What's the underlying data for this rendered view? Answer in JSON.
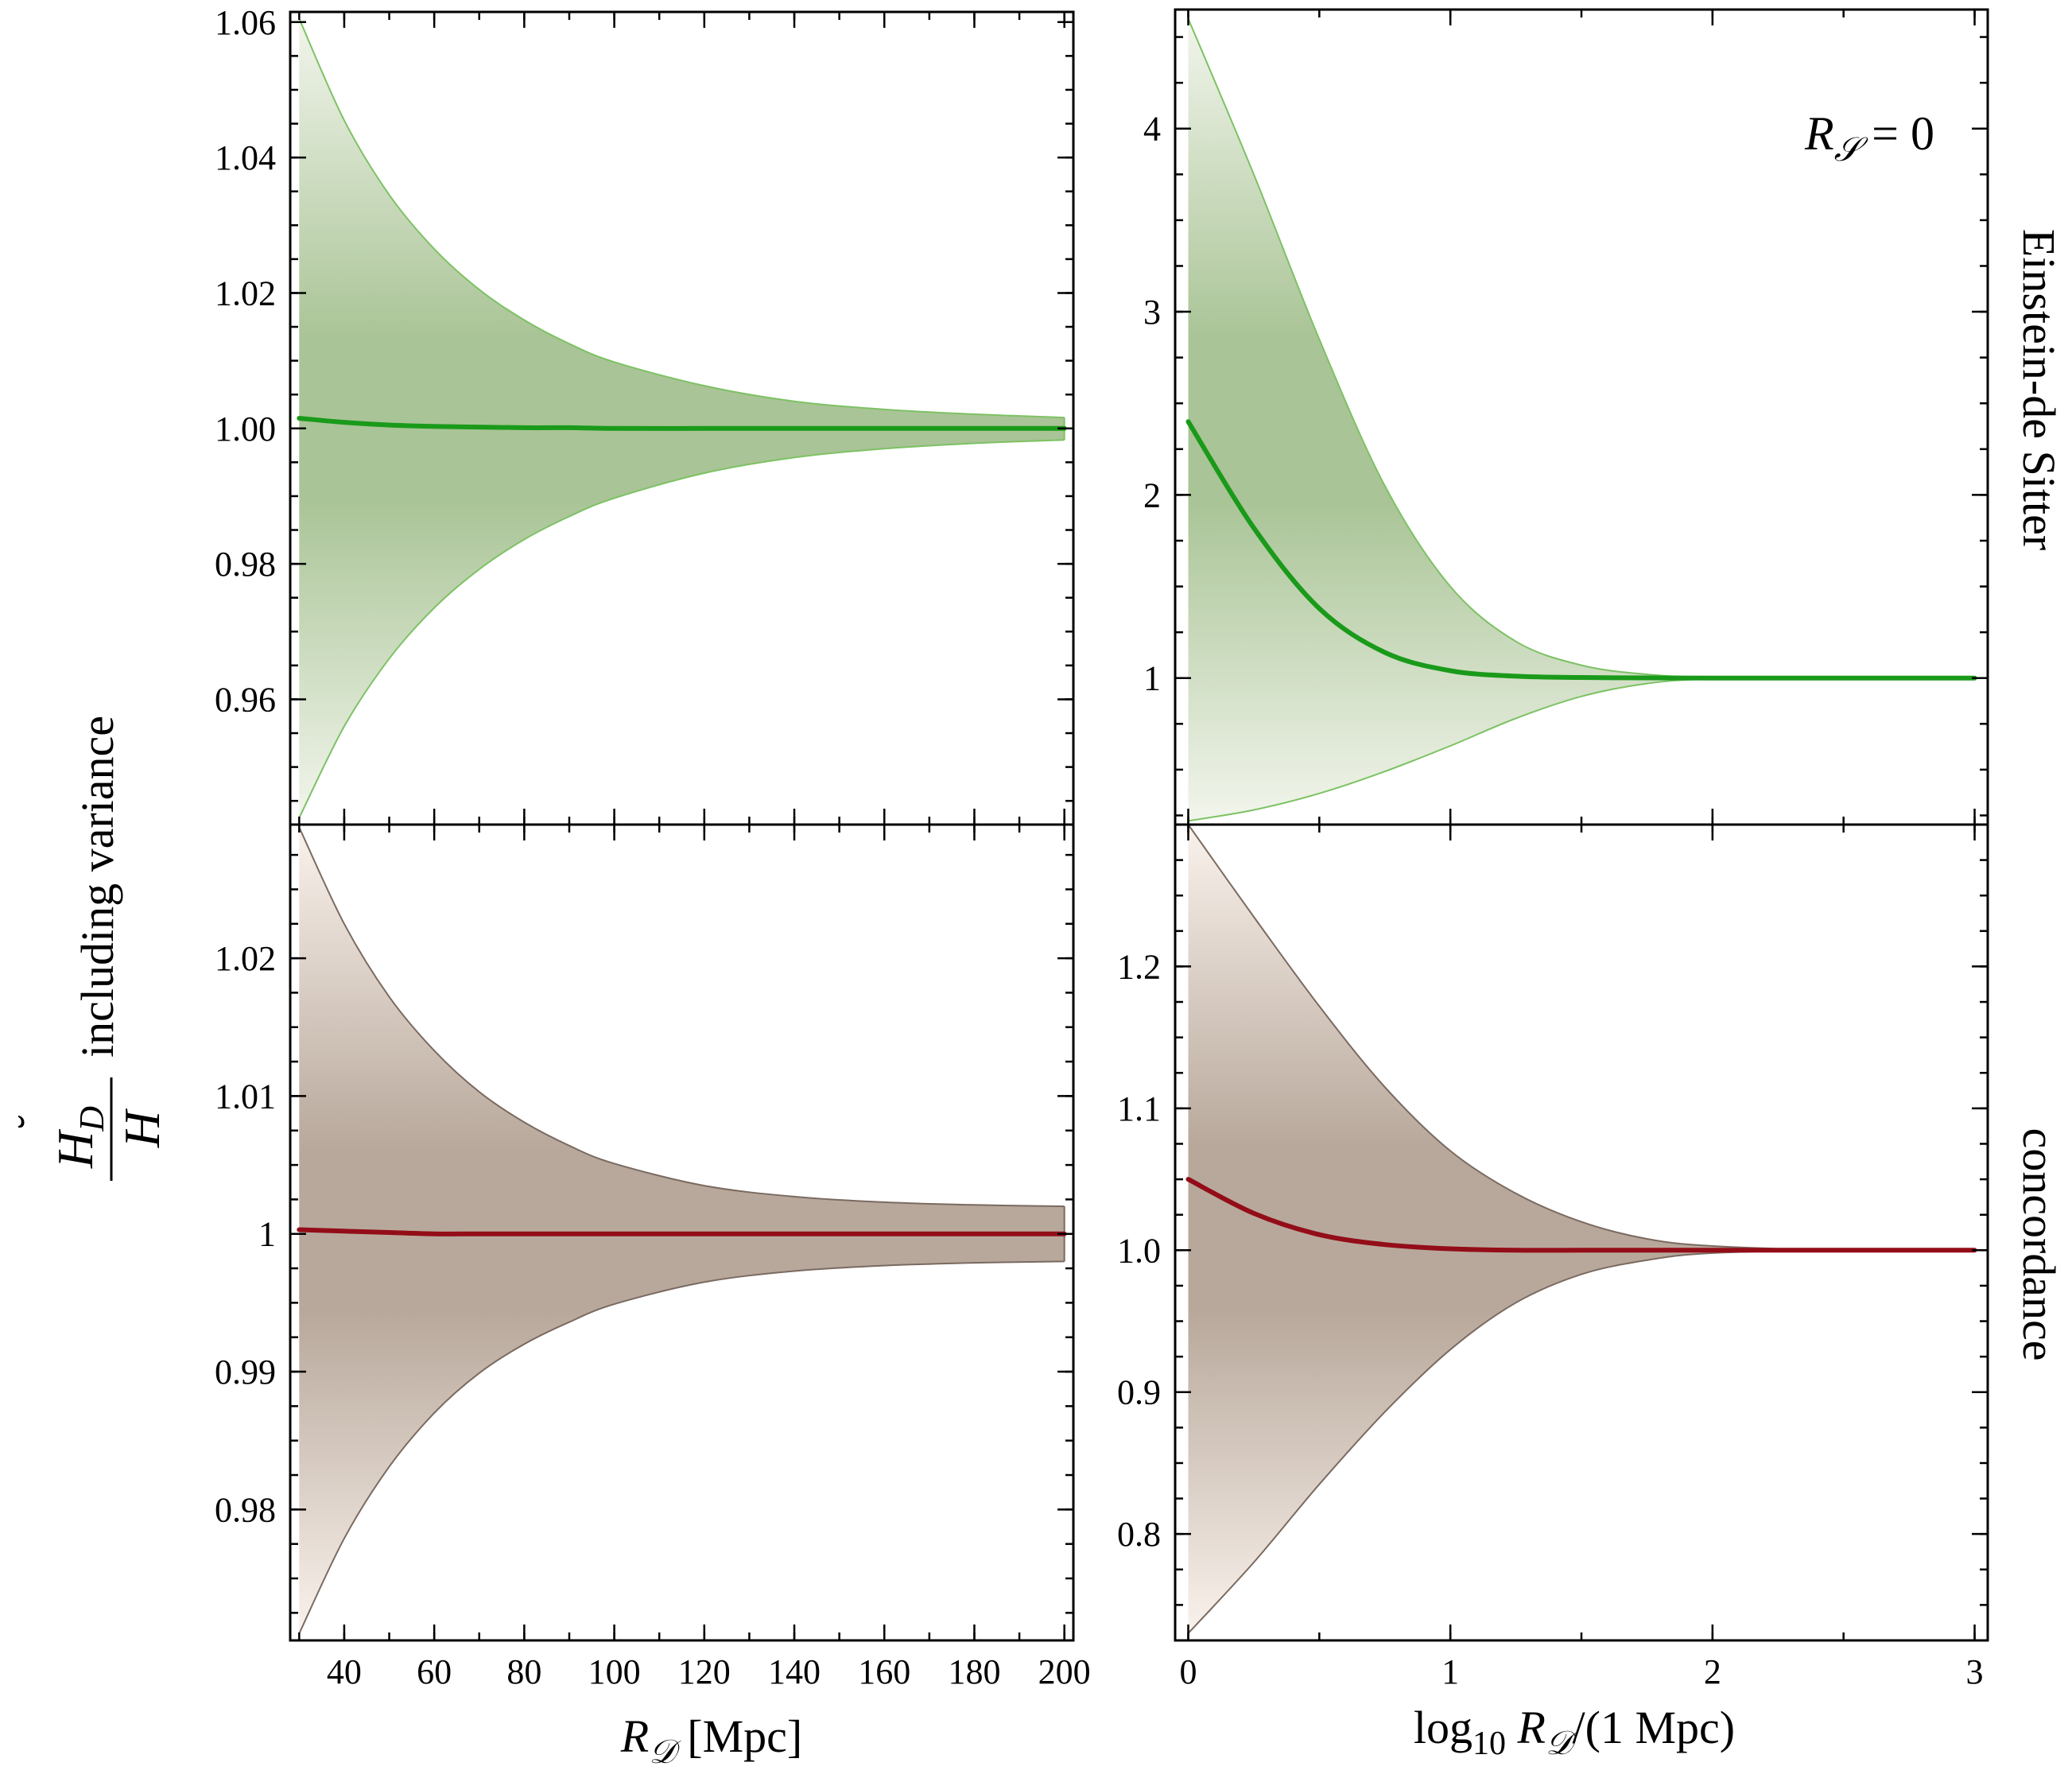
{
  "colors": {
    "eds_band_dark": "#a9c496",
    "eds_band_light": "#f2f5ec",
    "eds_edge": "#7dc264",
    "eds_curve": "#1a9a1a",
    "conc_band_dark": "#b8a89b",
    "conc_band_light": "#f9f2ec",
    "conc_edge": "#7a6a60",
    "conc_curve": "#930d18"
  },
  "figure": {
    "y_axis_label": {
      "numerator": "H",
      "numerator_sub": "D",
      "accent": "˘",
      "denominator": "H",
      "suffix": "including variance"
    },
    "row_labels": [
      "Einstein-de Sitter",
      "concordance"
    ],
    "annotation": {
      "main": "R",
      "sub": "𝒮",
      "rest": " = 0"
    },
    "x_titles": {
      "left": {
        "main": "R",
        "sub": "𝒟",
        "rest": " [Mpc]"
      },
      "right": {
        "pre": "log",
        "pre_sub": "10",
        "main": " R",
        "sub": "𝒟",
        "rest": "/(1 Mpc)"
      }
    }
  },
  "chart_data": [
    {
      "id": "eds-linear",
      "type": "area",
      "model": "Einstein-de Sitter",
      "x_scale": "linear",
      "xlim": [
        28,
        202
      ],
      "ylim": [
        0.9415,
        1.0615
      ],
      "x_ticks": [
        40,
        60,
        80,
        100,
        120,
        140,
        160,
        180,
        200
      ],
      "x_tick_labels": [
        "40",
        "60",
        "80",
        "100",
        "120",
        "140",
        "160",
        "180",
        "200"
      ],
      "show_x_labels": false,
      "y_ticks": [
        0.96,
        0.98,
        1.0,
        1.02,
        1.04,
        1.06
      ],
      "y_tick_labels": [
        "0.96",
        "0.98",
        "1.00",
        "1.02",
        "1.04",
        "1.06"
      ],
      "series": [
        {
          "name": "upper",
          "x": [
            30,
            40,
            50,
            60,
            70,
            80,
            90,
            100,
            120,
            140,
            160,
            180,
            200
          ],
          "values": [
            1.0605,
            1.0455,
            1.0345,
            1.0265,
            1.0205,
            1.016,
            1.0125,
            1.0098,
            1.0063,
            1.004,
            1.0028,
            1.0021,
            1.0016
          ]
        },
        {
          "name": "mean",
          "x": [
            30,
            40,
            50,
            60,
            70,
            80,
            90,
            100,
            120,
            140,
            160,
            180,
            200
          ],
          "values": [
            1.0015,
            1.0009,
            1.0005,
            1.0003,
            1.0002,
            1.0001,
            1.0001,
            1.0,
            1.0,
            1.0,
            1.0,
            1.0,
            1.0
          ]
        },
        {
          "name": "lower",
          "x": [
            30,
            40,
            50,
            60,
            70,
            80,
            90,
            100,
            120,
            140,
            160,
            180,
            200
          ],
          "values": [
            0.9425,
            0.956,
            0.966,
            0.9735,
            0.9792,
            0.9836,
            0.987,
            0.9897,
            0.9934,
            0.9957,
            0.997,
            0.9978,
            0.9983
          ]
        }
      ]
    },
    {
      "id": "eds-log",
      "type": "area",
      "model": "Einstein-de Sitter",
      "x_scale": "log10",
      "xlim": [
        -0.05,
        3.05
      ],
      "ylim": [
        0.2,
        4.65
      ],
      "x_ticks": [
        0,
        1,
        2,
        3
      ],
      "x_tick_labels": [
        "0",
        "1",
        "2",
        "3"
      ],
      "show_x_labels": false,
      "y_ticks": [
        1,
        2,
        3,
        4
      ],
      "y_tick_labels": [
        "1",
        "2",
        "3",
        "4"
      ],
      "series": [
        {
          "name": "upper",
          "x": [
            0,
            0.25,
            0.5,
            0.75,
            1.0,
            1.25,
            1.5,
            1.75,
            2.0,
            2.5,
            3.0
          ],
          "values": [
            4.6,
            3.75,
            2.85,
            2.05,
            1.5,
            1.2,
            1.07,
            1.02,
            1.005,
            1.0,
            1.0
          ]
        },
        {
          "name": "mean",
          "x": [
            0,
            0.25,
            0.5,
            0.75,
            1.0,
            1.25,
            1.5,
            1.75,
            2.0,
            2.5,
            3.0
          ],
          "values": [
            2.4,
            1.82,
            1.38,
            1.14,
            1.04,
            1.01,
            1.003,
            1.001,
            1.0,
            1.0,
            1.0
          ]
        },
        {
          "name": "lower",
          "x": [
            0,
            0.25,
            0.5,
            0.75,
            1.0,
            1.25,
            1.5,
            1.75,
            2.0,
            2.5,
            3.0
          ],
          "values": [
            0.22,
            0.28,
            0.37,
            0.49,
            0.63,
            0.78,
            0.9,
            0.97,
            0.995,
            1.0,
            1.0
          ]
        }
      ]
    },
    {
      "id": "conc-linear",
      "type": "area",
      "model": "concordance",
      "x_scale": "linear",
      "xlim": [
        28,
        202
      ],
      "ylim": [
        0.9705,
        1.0297
      ],
      "x_ticks": [
        40,
        60,
        80,
        100,
        120,
        140,
        160,
        180,
        200
      ],
      "x_tick_labels": [
        "40",
        "60",
        "80",
        "100",
        "120",
        "140",
        "160",
        "180",
        "200"
      ],
      "show_x_labels": true,
      "y_ticks": [
        0.98,
        0.99,
        1.0,
        1.01,
        1.02
      ],
      "y_tick_labels": [
        "0.98",
        "0.99",
        "1",
        "1.01",
        "1.02"
      ],
      "series": [
        {
          "name": "upper",
          "x": [
            30,
            40,
            50,
            60,
            70,
            80,
            90,
            100,
            120,
            140,
            160,
            180,
            200
          ],
          "values": [
            1.0295,
            1.0225,
            1.0172,
            1.0133,
            1.0103,
            1.0081,
            1.0064,
            1.0051,
            1.0035,
            1.0027,
            1.0023,
            1.0021,
            1.002
          ]
        },
        {
          "name": "mean",
          "x": [
            30,
            40,
            50,
            60,
            70,
            80,
            90,
            100,
            120,
            140,
            160,
            180,
            200
          ],
          "values": [
            1.0003,
            1.0002,
            1.0001,
            1.0,
            1.0,
            1.0,
            1.0,
            1.0,
            1.0,
            1.0,
            1.0,
            1.0,
            1.0
          ]
        },
        {
          "name": "lower",
          "x": [
            30,
            40,
            50,
            60,
            70,
            80,
            90,
            100,
            120,
            140,
            160,
            180,
            200
          ],
          "values": [
            0.971,
            0.9779,
            0.9831,
            0.987,
            0.9899,
            0.992,
            0.9936,
            0.9949,
            0.9965,
            0.9973,
            0.9977,
            0.9979,
            0.998
          ]
        }
      ]
    },
    {
      "id": "conc-log",
      "type": "area",
      "model": "concordance",
      "x_scale": "log10",
      "xlim": [
        -0.05,
        3.05
      ],
      "ylim": [
        0.725,
        1.3
      ],
      "x_ticks": [
        0,
        1,
        2,
        3
      ],
      "x_tick_labels": [
        "0",
        "1",
        "2",
        "3"
      ],
      "show_x_labels": true,
      "y_ticks": [
        0.8,
        0.9,
        1.0,
        1.1,
        1.2
      ],
      "y_tick_labels": [
        "0.8",
        "0.9",
        "1.0",
        "1.1",
        "1.2"
      ],
      "series": [
        {
          "name": "upper",
          "x": [
            0,
            0.25,
            0.5,
            0.75,
            1.0,
            1.25,
            1.5,
            1.75,
            2.0,
            2.5,
            3.0
          ],
          "values": [
            1.3,
            1.235,
            1.172,
            1.115,
            1.07,
            1.04,
            1.02,
            1.008,
            1.003,
            1.0,
            1.0
          ]
        },
        {
          "name": "mean",
          "x": [
            0,
            0.25,
            0.5,
            0.75,
            1.0,
            1.25,
            1.5,
            1.75,
            2.0,
            2.5,
            3.0
          ],
          "values": [
            1.05,
            1.026,
            1.011,
            1.004,
            1.001,
            1.0,
            1.0,
            1.0,
            1.0,
            1.0,
            1.0
          ]
        },
        {
          "name": "lower",
          "x": [
            0,
            0.25,
            0.5,
            0.75,
            1.0,
            1.25,
            1.5,
            1.75,
            2.0,
            2.5,
            3.0
          ],
          "values": [
            0.73,
            0.78,
            0.835,
            0.886,
            0.93,
            0.963,
            0.983,
            0.993,
            0.998,
            1.0,
            1.0
          ]
        }
      ]
    }
  ]
}
